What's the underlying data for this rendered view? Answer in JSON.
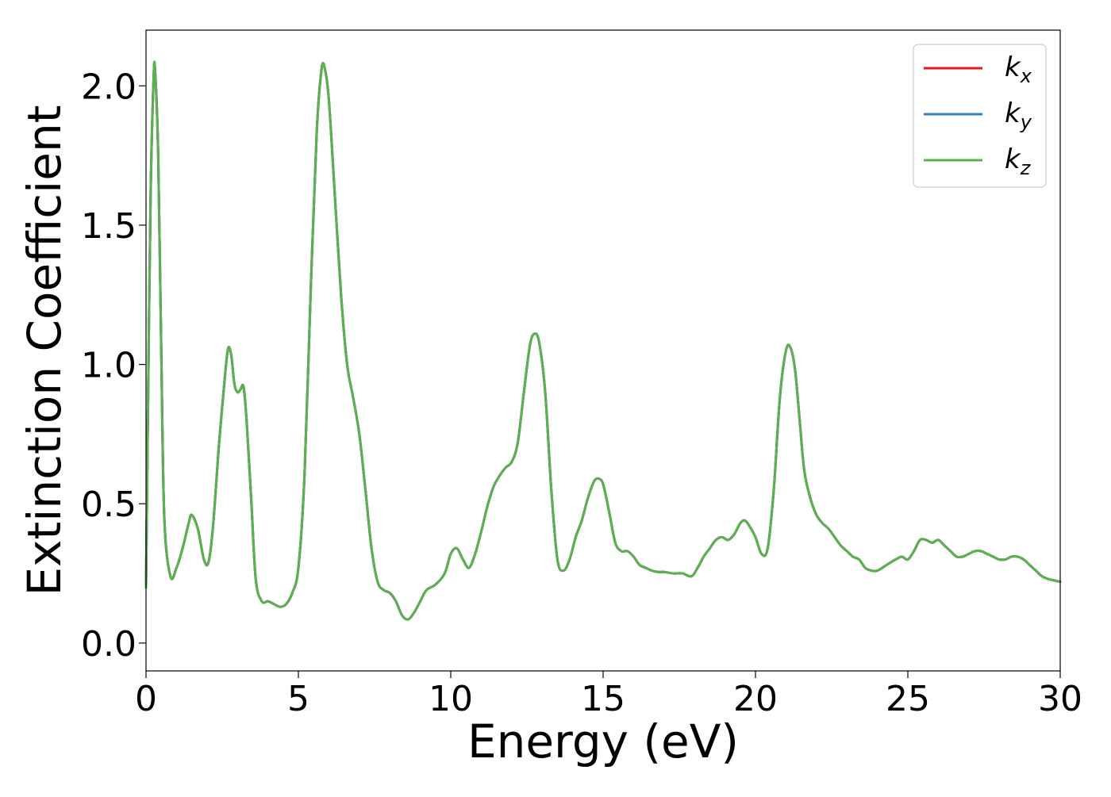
{
  "chart_data": {
    "type": "line",
    "xlabel": "Energy (eV)",
    "ylabel": "Extinction Coefficient",
    "xlim": [
      0,
      30
    ],
    "ylim": [
      -0.1,
      2.2
    ],
    "xticks": [
      0,
      5,
      10,
      15,
      20,
      25,
      30
    ],
    "xtick_labels": [
      "0",
      "5",
      "10",
      "15",
      "20",
      "25",
      "30"
    ],
    "yticks": [
      0.0,
      0.5,
      1.0,
      1.5,
      2.0
    ],
    "ytick_labels": [
      "0.0",
      "0.5",
      "1.0",
      "1.5",
      "2.0"
    ],
    "grid": false,
    "legend_position": "top-right",
    "series": [
      {
        "name": "k_x",
        "label_base": "k",
        "label_sub": "x",
        "color": "#e41a1c",
        "x": [
          0,
          0.05,
          0.15,
          0.25,
          0.3,
          0.4,
          0.5,
          0.6,
          0.8,
          1.0,
          1.2,
          1.4,
          1.5,
          1.7,
          1.9,
          2.05,
          2.2,
          2.4,
          2.6,
          2.7,
          2.8,
          2.9,
          3.0,
          3.1,
          3.2,
          3.3,
          3.45,
          3.6,
          3.8,
          4.0,
          4.2,
          4.4,
          4.6,
          4.8,
          5.0,
          5.2,
          5.4,
          5.6,
          5.75,
          5.85,
          6.0,
          6.2,
          6.4,
          6.6,
          6.8,
          7.0,
          7.2,
          7.4,
          7.6,
          7.8,
          8.0,
          8.2,
          8.4,
          8.6,
          8.8,
          9.0,
          9.2,
          9.5,
          9.8,
          10.0,
          10.2,
          10.4,
          10.6,
          10.8,
          11.0,
          11.2,
          11.4,
          11.6,
          11.8,
          12.0,
          12.2,
          12.4,
          12.6,
          12.75,
          12.9,
          13.1,
          13.3,
          13.5,
          13.7,
          13.9,
          14.1,
          14.3,
          14.5,
          14.7,
          14.85,
          15.0,
          15.2,
          15.4,
          15.6,
          15.8,
          16.0,
          16.2,
          16.4,
          16.6,
          16.8,
          17.0,
          17.3,
          17.6,
          17.9,
          18.1,
          18.3,
          18.5,
          18.7,
          18.9,
          19.1,
          19.3,
          19.5,
          19.65,
          19.8,
          20.0,
          20.2,
          20.4,
          20.6,
          20.8,
          21.0,
          21.15,
          21.3,
          21.45,
          21.6,
          21.8,
          22.0,
          22.2,
          22.4,
          22.6,
          22.8,
          23.0,
          23.2,
          23.4,
          23.6,
          23.8,
          24.0,
          24.3,
          24.6,
          24.8,
          25.0,
          25.2,
          25.4,
          25.6,
          25.8,
          26.0,
          26.2,
          26.4,
          26.6,
          26.8,
          27.0,
          27.2,
          27.4,
          27.6,
          27.8,
          28.0,
          28.2,
          28.4,
          28.6,
          28.8,
          29.0,
          29.2,
          29.4,
          29.6,
          30.0
        ],
        "y": [
          0.2,
          0.7,
          1.6,
          2.03,
          2.05,
          1.75,
          1.05,
          0.45,
          0.24,
          0.27,
          0.34,
          0.43,
          0.46,
          0.41,
          0.3,
          0.29,
          0.42,
          0.72,
          0.97,
          1.06,
          1.03,
          0.93,
          0.9,
          0.91,
          0.92,
          0.8,
          0.52,
          0.23,
          0.15,
          0.15,
          0.14,
          0.13,
          0.14,
          0.18,
          0.27,
          0.6,
          1.25,
          1.83,
          2.05,
          2.07,
          1.95,
          1.6,
          1.25,
          1.0,
          0.88,
          0.75,
          0.55,
          0.34,
          0.22,
          0.19,
          0.18,
          0.15,
          0.1,
          0.085,
          0.11,
          0.15,
          0.19,
          0.21,
          0.25,
          0.32,
          0.34,
          0.3,
          0.27,
          0.32,
          0.4,
          0.49,
          0.56,
          0.6,
          0.63,
          0.65,
          0.72,
          0.9,
          1.07,
          1.11,
          1.08,
          0.9,
          0.55,
          0.3,
          0.26,
          0.3,
          0.38,
          0.44,
          0.52,
          0.58,
          0.59,
          0.57,
          0.47,
          0.36,
          0.33,
          0.33,
          0.31,
          0.28,
          0.27,
          0.26,
          0.255,
          0.255,
          0.25,
          0.25,
          0.24,
          0.27,
          0.31,
          0.34,
          0.37,
          0.38,
          0.37,
          0.39,
          0.43,
          0.44,
          0.42,
          0.38,
          0.32,
          0.34,
          0.55,
          0.88,
          1.05,
          1.06,
          0.98,
          0.8,
          0.62,
          0.52,
          0.46,
          0.43,
          0.41,
          0.38,
          0.35,
          0.33,
          0.31,
          0.3,
          0.27,
          0.26,
          0.26,
          0.28,
          0.3,
          0.31,
          0.3,
          0.33,
          0.37,
          0.37,
          0.36,
          0.37,
          0.35,
          0.33,
          0.31,
          0.31,
          0.32,
          0.33,
          0.33,
          0.32,
          0.31,
          0.3,
          0.3,
          0.31,
          0.31,
          0.3,
          0.28,
          0.26,
          0.24,
          0.23,
          0.22
        ]
      },
      {
        "name": "k_y",
        "label_base": "k",
        "label_sub": "y",
        "color": "#377eb8",
        "x": [
          0,
          0.05,
          0.15,
          0.25,
          0.3,
          0.4,
          0.5,
          0.6,
          0.8,
          1.0,
          1.2,
          1.4,
          1.5,
          1.7,
          1.9,
          2.05,
          2.2,
          2.4,
          2.6,
          2.7,
          2.8,
          2.9,
          3.0,
          3.1,
          3.2,
          3.3,
          3.45,
          3.6,
          3.8,
          4.0,
          4.2,
          4.4,
          4.6,
          4.8,
          5.0,
          5.2,
          5.4,
          5.6,
          5.75,
          5.85,
          6.0,
          6.2,
          6.4,
          6.6,
          6.8,
          7.0,
          7.2,
          7.4,
          7.6,
          7.8,
          8.0,
          8.2,
          8.4,
          8.6,
          8.8,
          9.0,
          9.2,
          9.5,
          9.8,
          10.0,
          10.2,
          10.4,
          10.6,
          10.8,
          11.0,
          11.2,
          11.4,
          11.6,
          11.8,
          12.0,
          12.2,
          12.4,
          12.6,
          12.75,
          12.9,
          13.1,
          13.3,
          13.5,
          13.7,
          13.9,
          14.1,
          14.3,
          14.5,
          14.7,
          14.85,
          15.0,
          15.2,
          15.4,
          15.6,
          15.8,
          16.0,
          16.2,
          16.4,
          16.6,
          16.8,
          17.0,
          17.3,
          17.6,
          17.9,
          18.1,
          18.3,
          18.5,
          18.7,
          18.9,
          19.1,
          19.3,
          19.5,
          19.65,
          19.8,
          20.0,
          20.2,
          20.4,
          20.6,
          20.8,
          21.0,
          21.15,
          21.3,
          21.45,
          21.6,
          21.8,
          22.0,
          22.2,
          22.4,
          22.6,
          22.8,
          23.0,
          23.2,
          23.4,
          23.6,
          23.8,
          24.0,
          24.3,
          24.6,
          24.8,
          25.0,
          25.2,
          25.4,
          25.6,
          25.8,
          26.0,
          26.2,
          26.4,
          26.6,
          26.8,
          27.0,
          27.2,
          27.4,
          27.6,
          27.8,
          28.0,
          28.2,
          28.4,
          28.6,
          28.8,
          29.0,
          29.2,
          29.4,
          29.6,
          30.0
        ],
        "y": [
          0.2,
          0.7,
          1.6,
          2.03,
          2.05,
          1.75,
          1.05,
          0.45,
          0.24,
          0.27,
          0.34,
          0.43,
          0.46,
          0.41,
          0.3,
          0.29,
          0.42,
          0.72,
          0.97,
          1.06,
          1.03,
          0.93,
          0.9,
          0.91,
          0.92,
          0.8,
          0.52,
          0.23,
          0.15,
          0.15,
          0.14,
          0.13,
          0.14,
          0.18,
          0.27,
          0.6,
          1.25,
          1.83,
          2.05,
          2.07,
          1.95,
          1.6,
          1.25,
          1.0,
          0.88,
          0.75,
          0.55,
          0.34,
          0.22,
          0.19,
          0.18,
          0.15,
          0.1,
          0.085,
          0.11,
          0.15,
          0.19,
          0.21,
          0.25,
          0.32,
          0.34,
          0.3,
          0.27,
          0.32,
          0.4,
          0.49,
          0.56,
          0.6,
          0.63,
          0.65,
          0.72,
          0.9,
          1.07,
          1.11,
          1.08,
          0.9,
          0.55,
          0.3,
          0.26,
          0.3,
          0.38,
          0.44,
          0.52,
          0.58,
          0.59,
          0.57,
          0.47,
          0.36,
          0.33,
          0.33,
          0.31,
          0.28,
          0.27,
          0.26,
          0.255,
          0.255,
          0.25,
          0.25,
          0.24,
          0.27,
          0.31,
          0.34,
          0.37,
          0.38,
          0.37,
          0.39,
          0.43,
          0.44,
          0.42,
          0.38,
          0.32,
          0.34,
          0.55,
          0.88,
          1.05,
          1.06,
          0.98,
          0.8,
          0.62,
          0.52,
          0.46,
          0.43,
          0.41,
          0.38,
          0.35,
          0.33,
          0.31,
          0.3,
          0.27,
          0.26,
          0.26,
          0.28,
          0.3,
          0.31,
          0.3,
          0.33,
          0.37,
          0.37,
          0.36,
          0.37,
          0.35,
          0.33,
          0.31,
          0.31,
          0.32,
          0.33,
          0.33,
          0.32,
          0.31,
          0.3,
          0.3,
          0.31,
          0.31,
          0.3,
          0.28,
          0.26,
          0.24,
          0.23,
          0.22
        ]
      },
      {
        "name": "k_z",
        "label_base": "k",
        "label_sub": "z",
        "color": "#5cb04f",
        "x": [
          0,
          0.05,
          0.15,
          0.25,
          0.3,
          0.4,
          0.5,
          0.6,
          0.8,
          1.0,
          1.2,
          1.4,
          1.5,
          1.7,
          1.9,
          2.05,
          2.2,
          2.4,
          2.6,
          2.7,
          2.8,
          2.9,
          3.0,
          3.1,
          3.2,
          3.3,
          3.45,
          3.6,
          3.8,
          4.0,
          4.2,
          4.4,
          4.6,
          4.8,
          5.0,
          5.2,
          5.4,
          5.6,
          5.75,
          5.85,
          6.0,
          6.2,
          6.4,
          6.6,
          6.8,
          7.0,
          7.2,
          7.4,
          7.6,
          7.8,
          8.0,
          8.2,
          8.4,
          8.6,
          8.8,
          9.0,
          9.2,
          9.5,
          9.8,
          10.0,
          10.2,
          10.4,
          10.6,
          10.8,
          11.0,
          11.2,
          11.4,
          11.6,
          11.8,
          12.0,
          12.2,
          12.4,
          12.6,
          12.75,
          12.9,
          13.1,
          13.3,
          13.5,
          13.7,
          13.9,
          14.1,
          14.3,
          14.5,
          14.7,
          14.85,
          15.0,
          15.2,
          15.4,
          15.6,
          15.8,
          16.0,
          16.2,
          16.4,
          16.6,
          16.8,
          17.0,
          17.3,
          17.6,
          17.9,
          18.1,
          18.3,
          18.5,
          18.7,
          18.9,
          19.1,
          19.3,
          19.5,
          19.65,
          19.8,
          20.0,
          20.2,
          20.4,
          20.6,
          20.8,
          21.0,
          21.15,
          21.3,
          21.45,
          21.6,
          21.8,
          22.0,
          22.2,
          22.4,
          22.6,
          22.8,
          23.0,
          23.2,
          23.4,
          23.6,
          23.8,
          24.0,
          24.3,
          24.6,
          24.8,
          25.0,
          25.2,
          25.4,
          25.6,
          25.8,
          26.0,
          26.2,
          26.4,
          26.6,
          26.8,
          27.0,
          27.2,
          27.4,
          27.6,
          27.8,
          28.0,
          28.2,
          28.4,
          28.6,
          28.8,
          29.0,
          29.2,
          29.4,
          29.6,
          30.0
        ],
        "y": [
          0.2,
          0.7,
          1.6,
          2.03,
          2.05,
          1.75,
          1.05,
          0.45,
          0.24,
          0.27,
          0.34,
          0.43,
          0.46,
          0.41,
          0.3,
          0.29,
          0.42,
          0.72,
          0.97,
          1.06,
          1.03,
          0.93,
          0.9,
          0.91,
          0.92,
          0.8,
          0.52,
          0.23,
          0.15,
          0.15,
          0.14,
          0.13,
          0.14,
          0.18,
          0.27,
          0.6,
          1.25,
          1.83,
          2.05,
          2.07,
          1.95,
          1.6,
          1.25,
          1.0,
          0.88,
          0.75,
          0.55,
          0.34,
          0.22,
          0.19,
          0.18,
          0.15,
          0.1,
          0.085,
          0.11,
          0.15,
          0.19,
          0.21,
          0.25,
          0.32,
          0.34,
          0.3,
          0.27,
          0.32,
          0.4,
          0.49,
          0.56,
          0.6,
          0.63,
          0.65,
          0.72,
          0.9,
          1.07,
          1.11,
          1.08,
          0.9,
          0.55,
          0.3,
          0.26,
          0.3,
          0.38,
          0.44,
          0.52,
          0.58,
          0.59,
          0.57,
          0.47,
          0.36,
          0.33,
          0.33,
          0.31,
          0.28,
          0.27,
          0.26,
          0.255,
          0.255,
          0.25,
          0.25,
          0.24,
          0.27,
          0.31,
          0.34,
          0.37,
          0.38,
          0.37,
          0.39,
          0.43,
          0.44,
          0.42,
          0.38,
          0.32,
          0.34,
          0.55,
          0.88,
          1.05,
          1.06,
          0.98,
          0.8,
          0.62,
          0.52,
          0.46,
          0.43,
          0.41,
          0.38,
          0.35,
          0.33,
          0.31,
          0.3,
          0.27,
          0.26,
          0.26,
          0.28,
          0.3,
          0.31,
          0.3,
          0.33,
          0.37,
          0.37,
          0.36,
          0.37,
          0.35,
          0.33,
          0.31,
          0.31,
          0.32,
          0.33,
          0.33,
          0.32,
          0.31,
          0.3,
          0.3,
          0.31,
          0.31,
          0.3,
          0.28,
          0.26,
          0.24,
          0.23,
          0.22
        ]
      }
    ]
  }
}
